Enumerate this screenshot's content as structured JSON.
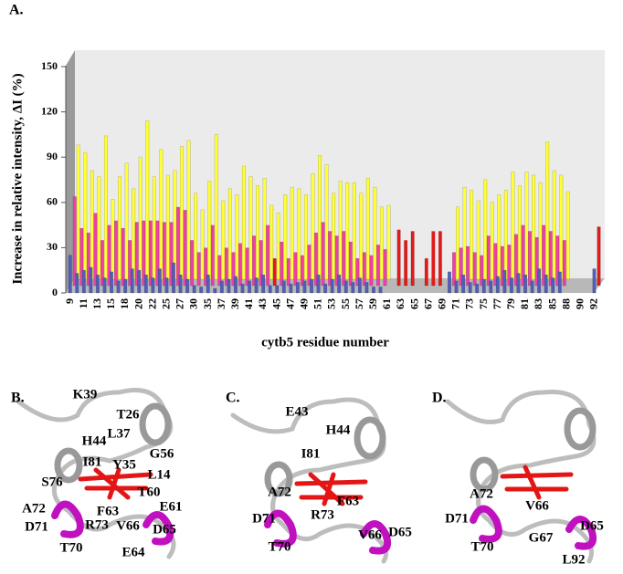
{
  "chart_data": {
    "type": "bar3d",
    "panel_label": "A.",
    "ylabel": "Increase in relative intensity, ΔI (%)",
    "xlabel": "cytb5 residue number",
    "categories": [
      "9",
      null,
      "11",
      null,
      "13",
      null,
      "15",
      null,
      "18",
      null,
      "20",
      null,
      "22",
      null,
      "25",
      null,
      "27",
      null,
      "30",
      null,
      "35",
      null,
      "37",
      null,
      "39",
      null,
      "41",
      null,
      "43",
      null,
      "45",
      null,
      "47",
      null,
      "49",
      null,
      "51",
      null,
      "53",
      null,
      "55",
      null,
      "57",
      null,
      "59",
      null,
      "61",
      null,
      "63",
      null,
      "65",
      null,
      "67",
      null,
      "69",
      null,
      "71",
      null,
      "73",
      null,
      "75",
      null,
      "77",
      null,
      "79",
      null,
      "81",
      null,
      "83",
      null,
      "85",
      null,
      "88",
      null,
      "90",
      null,
      "92"
    ],
    "ylim": [
      0,
      150
    ],
    "yticks": [
      0,
      30,
      60,
      90,
      120,
      150
    ],
    "series": [
      {
        "color": "#ffff33",
        "values": [
          89,
          84,
          72,
          68,
          95,
          53,
          68,
          77,
          60,
          81,
          105,
          68,
          86,
          69,
          72,
          88,
          92,
          57,
          46,
          65,
          96,
          52,
          60,
          56,
          75,
          68,
          62,
          67,
          49,
          44,
          56,
          61,
          60,
          56,
          70,
          82,
          76,
          57,
          65,
          64,
          64,
          57,
          67,
          61,
          48,
          49,
          null,
          null,
          null,
          null,
          null,
          null,
          null,
          null,
          null,
          48,
          61,
          59,
          52,
          66,
          51,
          56,
          59,
          71,
          62,
          71,
          69,
          64,
          91,
          72,
          69,
          58,
          null,
          null,
          null,
          null,
          null
        ]
      },
      {
        "color": "#ee3fa8",
        "values": [
          59,
          38,
          35,
          48,
          30,
          40,
          43,
          38,
          30,
          42,
          43,
          43,
          43,
          42,
          42,
          52,
          50,
          30,
          22,
          25,
          40,
          20,
          25,
          22,
          28,
          25,
          33,
          30,
          40,
          null,
          29,
          18,
          22,
          20,
          27,
          35,
          42,
          36,
          33,
          36,
          29,
          18,
          22,
          20,
          27,
          24,
          null,
          null,
          null,
          null,
          null,
          null,
          null,
          null,
          null,
          22,
          25,
          26,
          22,
          20,
          33,
          28,
          26,
          27,
          34,
          40,
          36,
          32,
          40,
          36,
          33,
          30,
          null,
          null,
          null,
          null,
          null
        ]
      },
      {
        "color": "#e41a1a",
        "values": [
          null,
          null,
          null,
          null,
          null,
          null,
          null,
          null,
          null,
          null,
          null,
          null,
          null,
          null,
          null,
          null,
          null,
          null,
          null,
          null,
          null,
          null,
          null,
          null,
          null,
          null,
          null,
          null,
          null,
          18,
          null,
          null,
          null,
          null,
          null,
          null,
          null,
          null,
          null,
          null,
          null,
          null,
          null,
          null,
          null,
          null,
          null,
          37,
          30,
          36,
          null,
          18,
          36,
          36,
          null,
          null,
          null,
          null,
          null,
          null,
          null,
          null,
          null,
          null,
          null,
          null,
          null,
          null,
          null,
          null,
          null,
          null,
          null,
          null,
          null,
          null,
          39
        ]
      },
      {
        "color": "#4f5fb8",
        "values": [
          25,
          13,
          15,
          17,
          12,
          10,
          14,
          8,
          9,
          16,
          15,
          12,
          10,
          16,
          10,
          20,
          12,
          9,
          5,
          4,
          12,
          3,
          8,
          9,
          11,
          6,
          8,
          10,
          12,
          5,
          5,
          8,
          6,
          7,
          8,
          9,
          12,
          6,
          9,
          12,
          8,
          7,
          10,
          7,
          4,
          4,
          null,
          null,
          null,
          null,
          null,
          null,
          null,
          null,
          null,
          14,
          8,
          12,
          7,
          6,
          9,
          8,
          11,
          15,
          10,
          13,
          12,
          8,
          16,
          12,
          10,
          14,
          null,
          null,
          null,
          null,
          16
        ]
      }
    ]
  },
  "panels": [
    {
      "label": "B.",
      "residues": [
        "K39",
        "T26",
        "L37",
        "H44",
        "G56",
        "I81",
        "Y35",
        "L14",
        "S76",
        "T60",
        "A72",
        "F63",
        "E61",
        "R73",
        "V66",
        "D71",
        "D65",
        "T70",
        "E64"
      ]
    },
    {
      "label": "C.",
      "residues": [
        "E43",
        "H44",
        "I81",
        "A72",
        "F63",
        "D71",
        "R73",
        "V66",
        "D65",
        "T70"
      ]
    },
    {
      "label": "D.",
      "residues": [
        "A72",
        "V66",
        "D71",
        "D65",
        "G67",
        "T70",
        "L92"
      ]
    }
  ]
}
